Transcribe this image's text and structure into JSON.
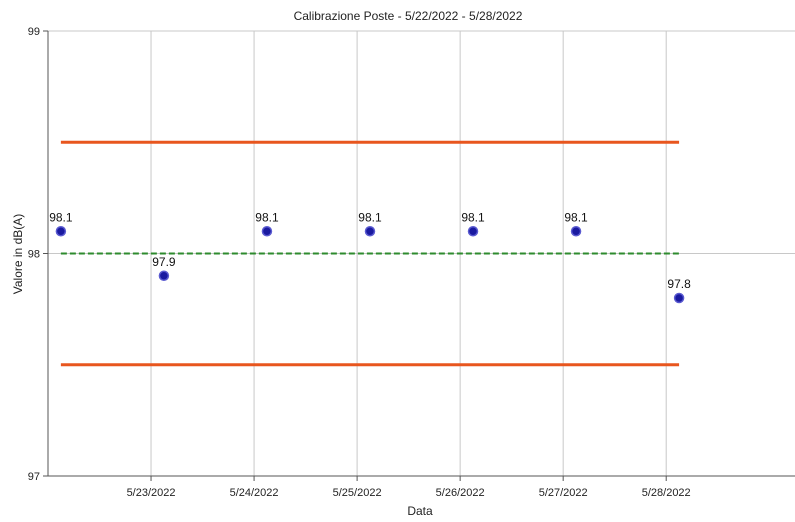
{
  "chart_data": {
    "type": "scatter",
    "title": "Calibrazione Poste - 5/22/2022 - 5/28/2022",
    "xlabel": "Data",
    "ylabel": "Valore in dB(A)",
    "ylim": [
      97,
      99
    ],
    "yticks": [
      97,
      98,
      99
    ],
    "xlim": [
      "5/22/2022 00:00",
      "5/29/2022 06:00"
    ],
    "xticks": [
      "5/23/2022",
      "5/24/2022",
      "5/25/2022",
      "5/26/2022",
      "5/27/2022",
      "5/28/2022"
    ],
    "grid": true,
    "points": [
      {
        "x": "5/22/2022 03:00",
        "y": 98.1,
        "label": "98.1"
      },
      {
        "x": "5/23/2022 03:00",
        "y": 97.9,
        "label": "97.9"
      },
      {
        "x": "5/24/2022 03:00",
        "y": 98.1,
        "label": "98.1"
      },
      {
        "x": "5/25/2022 03:00",
        "y": 98.1,
        "label": "98.1"
      },
      {
        "x": "5/26/2022 03:00",
        "y": 98.1,
        "label": "98.1"
      },
      {
        "x": "5/27/2022 03:00",
        "y": 98.1,
        "label": "98.1"
      },
      {
        "x": "5/28/2022 03:00",
        "y": 97.8,
        "label": "97.8"
      }
    ],
    "reference_lines": [
      {
        "y": 98.5,
        "style": "solid",
        "color": "#e8561e",
        "x_start": "5/22/2022 03:00",
        "x_end": "5/28/2022 03:00"
      },
      {
        "y": 98.0,
        "style": "dashed",
        "color": "#2e8b2e",
        "x_start": "5/22/2022 03:00",
        "x_end": "5/28/2022 03:00"
      },
      {
        "y": 97.5,
        "style": "solid",
        "color": "#e8561e",
        "x_start": "5/22/2022 03:00",
        "x_end": "5/28/2022 03:00"
      }
    ],
    "point_fill": "#1a1aa0",
    "point_stroke": "#5a5ad0"
  }
}
